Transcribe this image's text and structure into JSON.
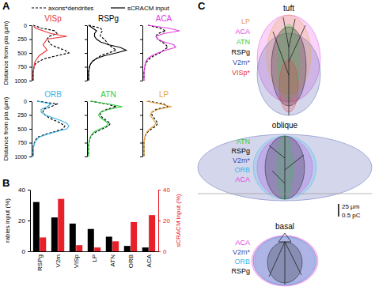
{
  "panel_labels": [
    "A",
    "B",
    "C"
  ],
  "chart_data": [
    {
      "type": "line",
      "title": "VISp",
      "orientation": "horizontal",
      "legend": "top",
      "tick_labels": "x",
      "x": [
        0,
        50,
        100,
        150,
        200,
        250,
        300,
        350,
        400,
        450,
        500,
        550,
        600,
        650,
        700,
        750,
        800,
        850,
        900,
        950,
        1000
      ],
      "xlim": [
        0,
        1000
      ],
      "xticks": [
        0,
        250,
        500,
        750,
        1000
      ],
      "xlabel": "Distance from pia (µm)",
      "ylim": [
        0,
        1
      ],
      "series": [
        {
          "name": "axons*dendrites",
          "color": "#000000",
          "line_style": "dashed",
          "values": [
            0,
            0.2,
            0.55,
            0.6,
            0.4,
            0.35,
            0.4,
            0.45,
            0.6,
            0.8,
            0.9,
            0.6,
            0.3,
            0.15,
            0.05,
            0.02,
            0.01,
            0,
            0,
            0,
            0
          ]
        },
        {
          "name": "sCRACM input",
          "color": "#e8333a",
          "line_style": "solid",
          "values": [
            0,
            0.05,
            0.25,
            0.45,
            0.85,
            0.35,
            0.3,
            0.25,
            0.3,
            0.35,
            0.25,
            0.15,
            0.1,
            0.05,
            0.03,
            0.02,
            0.01,
            0,
            0,
            0,
            0
          ]
        }
      ]
    },
    {
      "type": "line",
      "title": "RSPg",
      "orientation": "horizontal",
      "tick_labels": false,
      "x": [
        0,
        50,
        100,
        150,
        200,
        250,
        300,
        350,
        400,
        450,
        500,
        550,
        600,
        650,
        700,
        750,
        800,
        850,
        900,
        950,
        1000
      ],
      "xlim": [
        0,
        1000
      ],
      "xticks": [
        0,
        250,
        500,
        750,
        1000
      ],
      "ylim": [
        0,
        1
      ],
      "series": [
        {
          "color": "#000000",
          "line_style": "dashed",
          "values": [
            0,
            0.3,
            0.35,
            0.3,
            0.3,
            0.4,
            0.45,
            0.5,
            0.6,
            0.7,
            0.5,
            0.3,
            0.2,
            0.1,
            0.05,
            0.02,
            0.01,
            0,
            0,
            0,
            0
          ]
        },
        {
          "color": "#000000",
          "line_style": "solid",
          "values": [
            0,
            0.1,
            0.2,
            0.15,
            0.15,
            0.2,
            0.3,
            0.5,
            0.8,
            0.95,
            0.7,
            0.4,
            0.2,
            0.1,
            0.05,
            0.02,
            0.01,
            0,
            0,
            0,
            0
          ]
        }
      ]
    },
    {
      "type": "line",
      "title": "ACA",
      "orientation": "horizontal",
      "tick_labels": false,
      "x": [
        0,
        50,
        100,
        150,
        200,
        250,
        300,
        350,
        400,
        450,
        500,
        550,
        600,
        650,
        700,
        750,
        800,
        850,
        900,
        950,
        1000
      ],
      "xlim": [
        0,
        1000
      ],
      "xticks": [
        0,
        250,
        500,
        750,
        1000
      ],
      "ylim": [
        0,
        1
      ],
      "series": [
        {
          "color": "#000000",
          "line_style": "dashed",
          "values": [
            0.1,
            0.4,
            0.55,
            0.35,
            0.3,
            0.35,
            0.45,
            0.55,
            0.6,
            0.5,
            0.4,
            0.25,
            0.15,
            0.08,
            0.04,
            0.02,
            0.01,
            0,
            0,
            0,
            0
          ]
        },
        {
          "color": "#e23be0",
          "line_style": "solid",
          "values": [
            0.1,
            0.6,
            0.9,
            0.5,
            0.3,
            0.35,
            0.5,
            0.75,
            0.8,
            0.55,
            0.35,
            0.2,
            0.1,
            0.05,
            0.03,
            0.02,
            0.01,
            0,
            0,
            0,
            0
          ]
        }
      ]
    },
    {
      "type": "line",
      "title": "ORB",
      "orientation": "horizontal",
      "tick_labels": "x",
      "x": [
        0,
        50,
        100,
        150,
        200,
        250,
        300,
        350,
        400,
        450,
        500,
        550,
        600,
        650,
        700,
        750,
        800,
        850,
        900,
        950,
        1000
      ],
      "xlim": [
        0,
        1000
      ],
      "xticks": [
        0,
        250,
        500,
        750,
        1000
      ],
      "xlabel": "Distance from pia (µm)",
      "ylim": [
        0,
        1
      ],
      "series": [
        {
          "color": "#000000",
          "line_style": "dashed",
          "values": [
            0.1,
            0.6,
            0.45,
            0.25,
            0.25,
            0.3,
            0.4,
            0.55,
            0.7,
            0.8,
            0.75,
            0.55,
            0.3,
            0.12,
            0.06,
            0.03,
            0.01,
            0,
            0,
            0,
            0
          ]
        },
        {
          "color": "#3bb4e8",
          "line_style": "solid",
          "values": [
            0.1,
            0.45,
            0.35,
            0.2,
            0.2,
            0.3,
            0.5,
            0.7,
            0.85,
            0.9,
            0.85,
            0.6,
            0.35,
            0.15,
            0.08,
            0.04,
            0.02,
            0,
            0,
            0,
            0
          ]
        }
      ]
    },
    {
      "type": "line",
      "title": "ATN",
      "orientation": "horizontal",
      "tick_labels": false,
      "x": [
        0,
        50,
        100,
        150,
        200,
        250,
        300,
        350,
        400,
        450,
        500,
        550,
        600,
        650,
        700,
        750,
        800,
        850,
        900,
        950,
        1000
      ],
      "xlim": [
        0,
        1000
      ],
      "xticks": [
        0,
        250,
        500,
        750,
        1000
      ],
      "ylim": [
        0,
        1
      ],
      "series": [
        {
          "color": "#000000",
          "line_style": "dashed",
          "values": [
            0.05,
            0.45,
            0.7,
            0.45,
            0.3,
            0.3,
            0.35,
            0.45,
            0.55,
            0.5,
            0.35,
            0.2,
            0.1,
            0.05,
            0.02,
            0.01,
            0,
            0,
            0,
            0,
            0
          ]
        },
        {
          "color": "#2ecc40",
          "line_style": "solid",
          "values": [
            0.05,
            0.5,
            0.85,
            0.5,
            0.3,
            0.25,
            0.3,
            0.4,
            0.5,
            0.45,
            0.3,
            0.15,
            0.08,
            0.04,
            0.02,
            0.01,
            0,
            0,
            0,
            0,
            0
          ]
        }
      ]
    },
    {
      "type": "line",
      "title": "LP",
      "orientation": "horizontal",
      "tick_labels": false,
      "x": [
        0,
        50,
        100,
        150,
        200,
        250,
        300,
        350,
        400,
        450,
        500,
        550,
        600,
        650,
        700,
        750,
        800,
        850,
        900,
        950,
        1000
      ],
      "xlim": [
        0,
        1000
      ],
      "xticks": [
        0,
        250,
        500,
        750,
        1000
      ],
      "ylim": [
        0,
        1
      ],
      "series": [
        {
          "color": "#000000",
          "line_style": "dashed",
          "values": [
            0.1,
            0.5,
            0.6,
            0.3,
            0.2,
            0.2,
            0.25,
            0.3,
            0.35,
            0.3,
            0.2,
            0.1,
            0.05,
            0.02,
            0.01,
            0,
            0,
            0,
            0,
            0,
            0
          ]
        },
        {
          "color": "#e8a23b",
          "line_style": "solid",
          "values": [
            0.05,
            0.4,
            0.7,
            0.35,
            0.2,
            0.15,
            0.2,
            0.25,
            0.3,
            0.25,
            0.15,
            0.08,
            0.04,
            0.02,
            0.01,
            0,
            0,
            0,
            0,
            0,
            0
          ]
        }
      ]
    },
    {
      "type": "bar",
      "categories": [
        "RSPg",
        "V2m",
        "VISp",
        "LP",
        "ATN",
        "ORB",
        "ACA"
      ],
      "ylabel": "rabies input (%)",
      "y2label": "sCRACM input (%)",
      "ylim": [
        0,
        40
      ],
      "yticks": [
        0,
        20,
        40
      ],
      "y2lim": [
        0,
        40
      ],
      "y2ticks": [
        0,
        20,
        40
      ],
      "series": [
        {
          "color": "#000000",
          "values": [
            32,
            22,
            18,
            14.5,
            9.5,
            3.5,
            2.5
          ]
        },
        {
          "color": "#e8202a",
          "axis": "y2",
          "values": [
            9,
            34,
            4,
            2.5,
            6.5,
            19,
            23.5
          ]
        }
      ]
    }
  ],
  "diagram": {
    "groups": [
      {
        "title": "tuft",
        "labels": [
          {
            "text": "LP",
            "color": "#e8a23b"
          },
          {
            "text": "ACA",
            "color": "#e23be0"
          },
          {
            "text": "ATN",
            "color": "#2ecc40"
          },
          {
            "text": "RSPg",
            "color": "#000000"
          },
          {
            "text": "V2m*",
            "color": "#3b4ba8"
          },
          {
            "text": "VISp*",
            "color": "#e8333a"
          }
        ]
      },
      {
        "title": "oblique",
        "labels": [
          {
            "text": "ATN",
            "color": "#2ecc40"
          },
          {
            "text": "RSPg",
            "color": "#000000"
          },
          {
            "text": "V2m*",
            "color": "#3b4ba8"
          },
          {
            "text": "ORB",
            "color": "#3bb4e8"
          },
          {
            "text": "ACA",
            "color": "#e23be0"
          }
        ]
      },
      {
        "title": "basal",
        "labels": [
          {
            "text": "ACA",
            "color": "#e23be0"
          },
          {
            "text": "V2m*",
            "color": "#3b4ba8"
          },
          {
            "text": "ORB",
            "color": "#3bb4e8"
          },
          {
            "text": "RSPg",
            "color": "#000000"
          }
        ]
      }
    ],
    "scale_bar": [
      "25 µm",
      "0.5 pC"
    ]
  }
}
